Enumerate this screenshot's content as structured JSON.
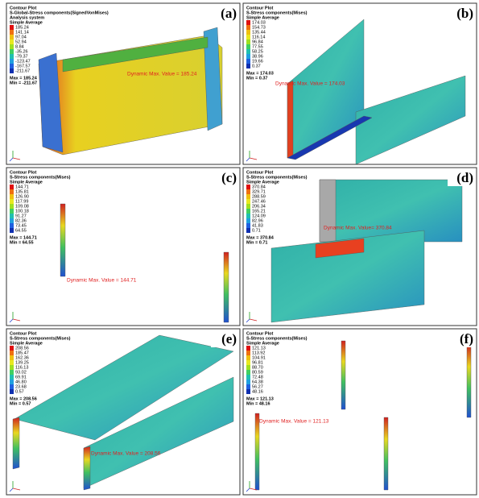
{
  "panels": [
    {
      "label": "(a)",
      "header": [
        "Contour Plot",
        "S-Global-Stress components(SignedVonMises)",
        "Analysis system",
        "Simple Average"
      ],
      "legend": [
        "185.24",
        "141.14",
        "97.04",
        "52.94",
        "8.84",
        "-35.26",
        "-79.37",
        "-123.47",
        "-167.57",
        "-211.67"
      ],
      "max": "Max = 185.24",
      "min": "Min = -211.67",
      "annotation": "Dynamic Max. Value = 185.24"
    },
    {
      "label": "(b)",
      "header": [
        "Contour Plot",
        "S-Stress components(Mises)",
        "Simple Average"
      ],
      "legend": [
        "174.03",
        "154.73",
        "135.44",
        "116.14",
        "96.84",
        "77.55",
        "58.25",
        "38.96",
        "19.66",
        "0.37"
      ],
      "max": "Max = 174.03",
      "min": "Min = 0.37",
      "annotation": "Dynamic Max. Value = 174.03"
    },
    {
      "label": "(c)",
      "header": [
        "Contour Plot",
        "S-Stress components(Mises)",
        "Simple Average"
      ],
      "legend": [
        "144.71",
        "135.81",
        "126.90",
        "117.99",
        "109.08",
        "100.18",
        "91.27",
        "82.36",
        "73.45",
        "64.55"
      ],
      "max": "Max = 144.71",
      "min": "Min = 64.55",
      "annotation": "Dynamic Max. Value =  144.71"
    },
    {
      "label": "(d)",
      "header": [
        "Contour Plot",
        "S-Stress components(Mises)",
        "Simple Average"
      ],
      "legend": [
        "370.84",
        "329.71",
        "288.59",
        "247.46",
        "206.34",
        "165.21",
        "124.09",
        "82.96",
        "41.83",
        "0.71"
      ],
      "max": "Max = 370.84",
      "min": "Min = 0.71",
      "annotation": "Dynamic Max. Value= 370.84"
    },
    {
      "label": "(e)",
      "header": [
        "Contour Plot",
        "S-Stress components(Mises)",
        "Simple Average"
      ],
      "legend": [
        "208.56",
        "185.47",
        "162.36",
        "139.25",
        "116.13",
        "93.02",
        "69.91",
        "46.80",
        "23.68",
        "0.57"
      ],
      "max": "Max = 208.56",
      "min": "Min = 0.57",
      "annotation": "Dynamic Max. Value = 208.56"
    },
    {
      "label": "(f)",
      "header": [
        "Contour Plot",
        "S-Stress components(Mises)",
        "Simple Average"
      ],
      "legend": [
        "121.13",
        "113.92",
        "104.91",
        "96.81",
        "88.70",
        "80.59",
        "72.48",
        "64.38",
        "56.27",
        "48.16"
      ],
      "max": "Max = 121.13",
      "min": "Min = 48.16",
      "annotation": "Dynamic Max. Value = 121.13"
    }
  ]
}
